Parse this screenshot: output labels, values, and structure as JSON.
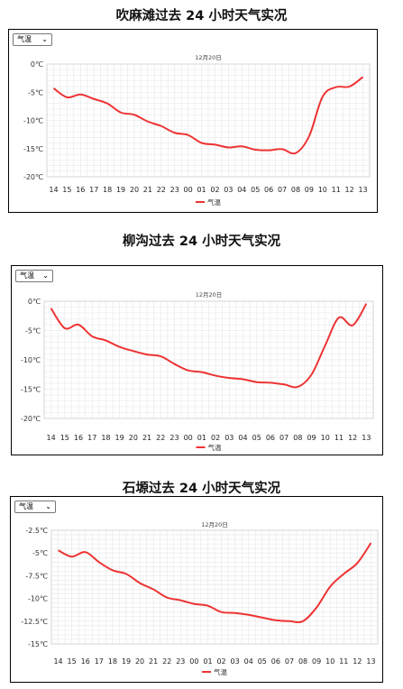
{
  "chart_data": [
    {
      "type": "line",
      "title": "吹麻滩过去 24 小时天气实况",
      "select_value": "气温",
      "date_label": "12月20日",
      "x": [
        "14",
        "15",
        "16",
        "17",
        "18",
        "19",
        "20",
        "21",
        "22",
        "23",
        "00",
        "01",
        "02",
        "03",
        "04",
        "05",
        "06",
        "07",
        "08",
        "09",
        "10",
        "11",
        "12",
        "13"
      ],
      "yticks": [
        "0℃",
        "-5℃",
        "-10℃",
        "-15℃",
        "-20℃"
      ],
      "ylim": [
        -20,
        0
      ],
      "series": [
        {
          "name": "气温",
          "color": "#ee3333",
          "values": [
            -4.3,
            -5.9,
            -5.4,
            -6.2,
            -7.0,
            -8.6,
            -9.0,
            -10.2,
            -11.0,
            -12.2,
            -12.6,
            -14.0,
            -14.3,
            -14.8,
            -14.6,
            -15.2,
            -15.3,
            -15.1,
            -15.8,
            -12.8,
            -5.8,
            -4.1,
            -4.0,
            -2.3
          ]
        }
      ],
      "legend": "bottom",
      "grid": true,
      "color": "#ee3333"
    },
    {
      "type": "line",
      "title": "柳沟过去 24 小时天气实况",
      "select_value": "气温",
      "date_label": "12月20日",
      "x": [
        "14",
        "15",
        "16",
        "17",
        "18",
        "19",
        "20",
        "21",
        "22",
        "23",
        "00",
        "01",
        "02",
        "03",
        "04",
        "05",
        "06",
        "07",
        "08",
        "09",
        "10",
        "11",
        "12",
        "13"
      ],
      "yticks": [
        "0℃",
        "-5℃",
        "-10℃",
        "-15℃",
        "-20℃"
      ],
      "ylim": [
        -20,
        0
      ],
      "series": [
        {
          "name": "气温",
          "color": "#ee3333",
          "values": [
            -1.2,
            -4.6,
            -4.0,
            -6.0,
            -6.7,
            -7.8,
            -8.5,
            -9.1,
            -9.4,
            -10.7,
            -11.8,
            -12.1,
            -12.7,
            -13.1,
            -13.3,
            -13.8,
            -13.9,
            -14.2,
            -14.6,
            -12.5,
            -7.5,
            -2.8,
            -4.1,
            -0.4
          ]
        }
      ],
      "legend": "bottom",
      "grid": true,
      "color": "#ee3333"
    },
    {
      "type": "line",
      "title": "石塬过去 24 小时天气实况",
      "select_value": "气温",
      "date_label": "12月20日",
      "x": [
        "14",
        "15",
        "16",
        "17",
        "18",
        "19",
        "20",
        "21",
        "22",
        "23",
        "00",
        "01",
        "02",
        "03",
        "04",
        "05",
        "06",
        "07",
        "08",
        "09",
        "10",
        "11",
        "12",
        "13"
      ],
      "yticks": [
        "-2.5℃",
        "-5℃",
        "-7.5℃",
        "-10℃",
        "-12.5℃",
        "-15℃"
      ],
      "ylim": [
        -15,
        -2.5
      ],
      "series": [
        {
          "name": "气温",
          "color": "#ee3333",
          "values": [
            -4.7,
            -5.4,
            -4.9,
            -6.0,
            -6.9,
            -7.3,
            -8.3,
            -9.0,
            -9.9,
            -10.2,
            -10.6,
            -10.8,
            -11.5,
            -11.6,
            -11.8,
            -12.1,
            -12.4,
            -12.5,
            -12.5,
            -11.0,
            -8.7,
            -7.3,
            -6.1,
            -3.9
          ]
        }
      ],
      "legend": "bottom",
      "grid": true,
      "color": "#ee3333"
    }
  ]
}
